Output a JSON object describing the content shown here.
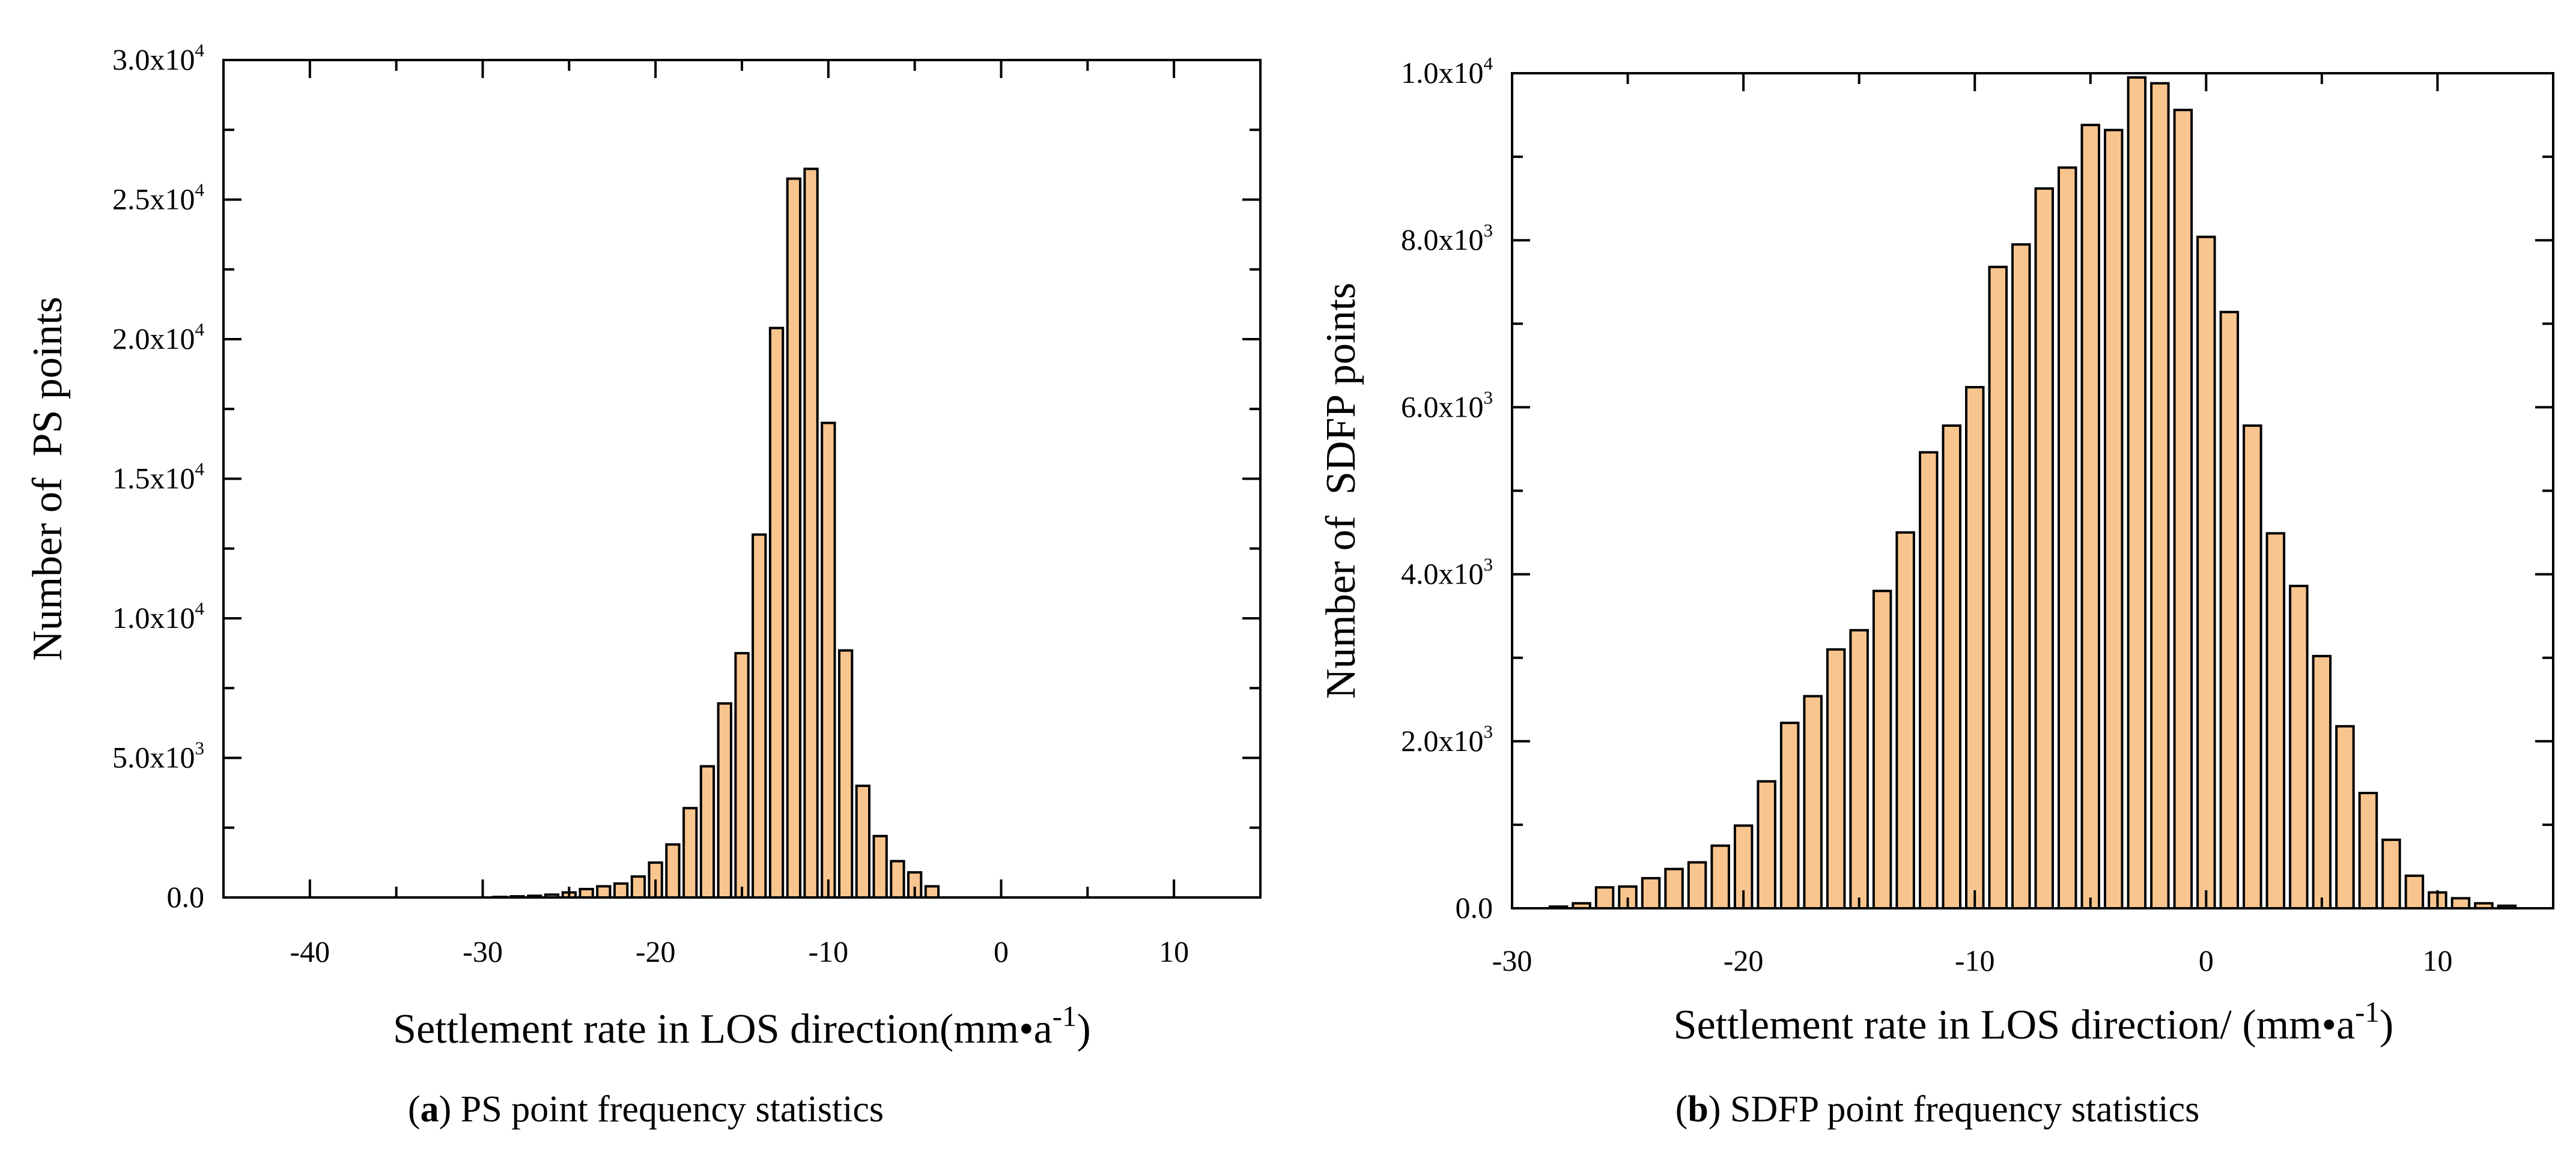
{
  "colors": {
    "bar_fill": "#f9c58f",
    "bar_stroke": "#000000",
    "axis": "#000000"
  },
  "chart_data": [
    {
      "type": "bar",
      "title": "",
      "caption": {
        "label": "a",
        "text": " PS point frequency statistics"
      },
      "xlabel": {
        "text": "Settlement rate in LOS direction(mm•a",
        "sup": "-1",
        "tail": ")"
      },
      "ylabel": "Number of  PS points",
      "bin_width": 1,
      "xlim": [
        -45,
        15
      ],
      "ylim": [
        0,
        30000
      ],
      "xticks": [
        -40,
        -30,
        -20,
        -10,
        0,
        10
      ],
      "yticks": [
        {
          "value": 0,
          "base": "0.0",
          "exp": ""
        },
        {
          "value": 5000,
          "base": "5.0x10",
          "exp": "3"
        },
        {
          "value": 10000,
          "base": "1.0x10",
          "exp": "4"
        },
        {
          "value": 15000,
          "base": "1.5x10",
          "exp": "4"
        },
        {
          "value": 20000,
          "base": "2.0x10",
          "exp": "4"
        },
        {
          "value": 25000,
          "base": "2.5x10",
          "exp": "4"
        },
        {
          "value": 30000,
          "base": "3.0x10",
          "exp": "4"
        }
      ],
      "x": [
        -29,
        -28,
        -27,
        -26,
        -25,
        -24,
        -23,
        -22,
        -21,
        -20,
        -19,
        -18,
        -17,
        -16,
        -15,
        -14,
        -13,
        -12,
        -11,
        -10,
        -9,
        -8,
        -7,
        -6,
        -5,
        -4
      ],
      "values": [
        20,
        40,
        60,
        100,
        180,
        300,
        400,
        500,
        750,
        1250,
        1900,
        3200,
        4700,
        6950,
        8750,
        13000,
        20400,
        25750,
        26100,
        17000,
        8850,
        4000,
        2200,
        1300,
        900,
        400
      ]
    },
    {
      "type": "bar",
      "title": "",
      "caption": {
        "label": "b",
        "text": " SDFP point frequency statistics"
      },
      "xlabel": {
        "text": "Settlement rate in LOS direction/ (mm•a",
        "sup": "-1",
        "tail": ")"
      },
      "ylabel": "Number of  SDFP points",
      "bin_width": 1,
      "xlim": [
        -30,
        15
      ],
      "ylim": [
        0,
        10000
      ],
      "xticks": [
        -30,
        -20,
        -10,
        0,
        10
      ],
      "yticks": [
        {
          "value": 0,
          "base": "0.0",
          "exp": ""
        },
        {
          "value": 2000,
          "base": "2.0x10",
          "exp": "3"
        },
        {
          "value": 4000,
          "base": "4.0x10",
          "exp": "3"
        },
        {
          "value": 6000,
          "base": "6.0x10",
          "exp": "3"
        },
        {
          "value": 8000,
          "base": "8.0x10",
          "exp": "3"
        },
        {
          "value": 10000,
          "base": "1.0x10",
          "exp": "4"
        }
      ],
      "x": [
        -28,
        -27,
        -26,
        -25,
        -24,
        -23,
        -22,
        -21,
        -20,
        -19,
        -18,
        -17,
        -16,
        -15,
        -14,
        -13,
        -12,
        -11,
        -10,
        -9,
        -8,
        -7,
        -6,
        -5,
        -4,
        -3,
        -2,
        -1,
        0,
        1,
        2,
        3,
        4,
        5,
        6,
        7,
        8,
        9,
        10,
        11,
        12,
        13
      ],
      "values": [
        20,
        60,
        250,
        260,
        360,
        470,
        550,
        750,
        990,
        1520,
        2220,
        2540,
        3100,
        3330,
        3800,
        4500,
        5460,
        5780,
        6240,
        7680,
        7950,
        8620,
        8870,
        9380,
        9320,
        9950,
        9880,
        9560,
        8040,
        7140,
        5780,
        4490,
        3860,
        3020,
        2180,
        1380,
        820,
        390,
        190,
        120,
        60,
        30
      ]
    }
  ]
}
